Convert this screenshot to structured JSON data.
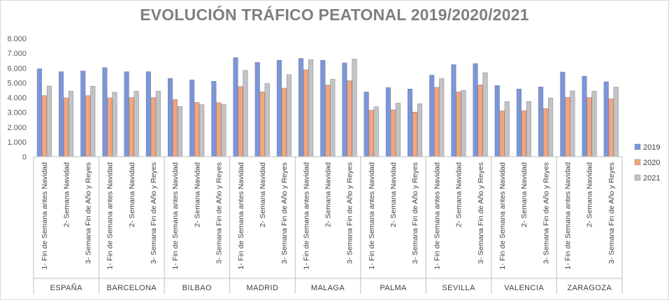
{
  "chart_data": {
    "type": "bar",
    "title": "EVOLUCIÓN TRÁFICO PEATONAL 2019/2020/2021",
    "xlabel": "",
    "ylabel": "",
    "ylim": [
      0,
      8000
    ],
    "yticks": [
      0,
      1000,
      2000,
      3000,
      4000,
      5000,
      6000,
      7000,
      8000
    ],
    "ytick_labels": [
      "0",
      "1.000",
      "2.000",
      "3.000",
      "4.000",
      "5.000",
      "6.000",
      "7.000",
      "8.000"
    ],
    "grid": false,
    "legend_position": "right",
    "groups": [
      "ESPAÑA",
      "BARCELONA",
      "BILBAO",
      "MADRID",
      "MALAGA",
      "PALMA",
      "SEVILLA",
      "VALENCIA",
      "ZARAGOZA"
    ],
    "subcategories": [
      "1- Fin de Semana antes Navidad",
      "2- Semana Navidad",
      "3- Semana Fin de Año y Reyes"
    ],
    "series": [
      {
        "name": "2019",
        "color": "#7b96d9",
        "values": [
          5950,
          5750,
          5800,
          6030,
          5750,
          5750,
          5300,
          5200,
          5100,
          6700,
          6380,
          6530,
          6650,
          6520,
          6350,
          4380,
          4680,
          4580,
          5520,
          6230,
          6300,
          4820,
          4580,
          4720,
          5730,
          5450,
          5070
        ]
      },
      {
        "name": "2020",
        "color": "#f4a57b",
        "values": [
          4130,
          3980,
          4130,
          3980,
          4000,
          4000,
          3870,
          3670,
          3650,
          4750,
          4380,
          4640,
          5880,
          4850,
          5140,
          3150,
          3170,
          3020,
          4690,
          4380,
          4860,
          3100,
          3110,
          3250,
          4010,
          4000,
          3920
        ]
      },
      {
        "name": "2021",
        "color": "#c3c3c3",
        "values": [
          4780,
          4430,
          4770,
          4360,
          4430,
          4430,
          3400,
          3520,
          3530,
          5830,
          4950,
          5550,
          6570,
          5240,
          6610,
          3380,
          3620,
          3580,
          5280,
          4480,
          5680,
          3730,
          3730,
          3960,
          4450,
          4430,
          4710
        ]
      }
    ]
  }
}
